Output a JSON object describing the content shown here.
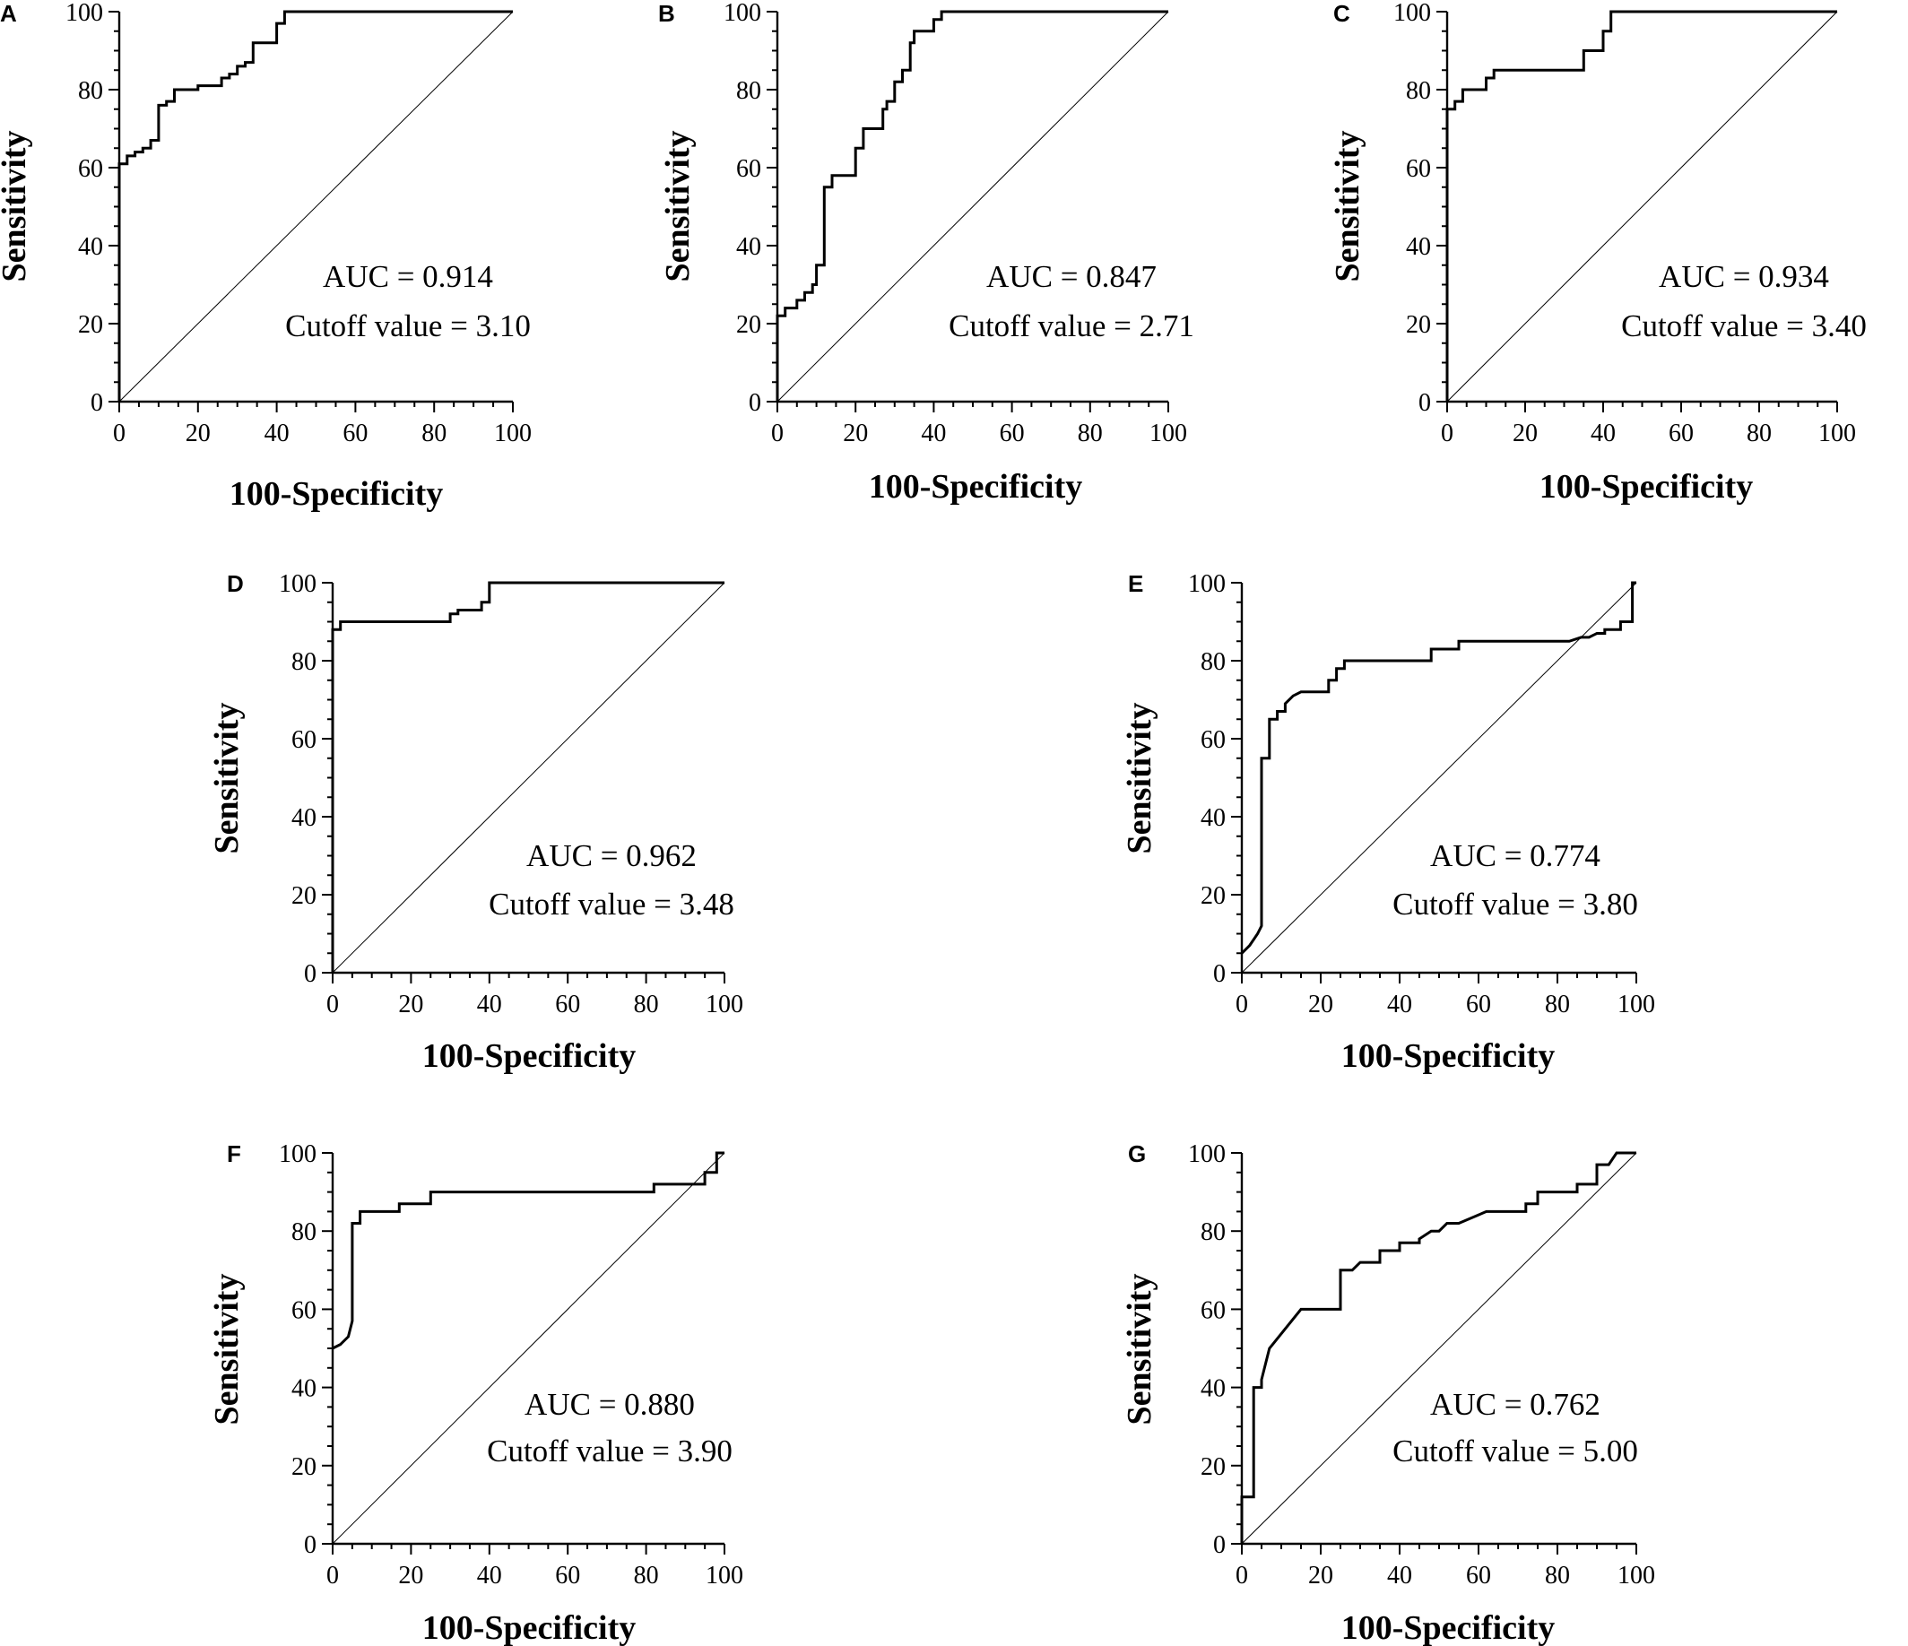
{
  "chart_data": [
    {
      "panel": "A",
      "type": "line",
      "xlabel": "100-Specificity",
      "ylabel": "Sensitivity",
      "xlim": [
        0,
        100
      ],
      "ylim": [
        0,
        100
      ],
      "xticks": [
        "0",
        "20",
        "40",
        "60",
        "80",
        "100"
      ],
      "yticks": [
        "0",
        "20",
        "40",
        "60",
        "80",
        "100"
      ],
      "annotations": [
        "AUC = 0.914",
        "Cutoff value = 3.10"
      ],
      "series": [
        {
          "role": "roc",
          "x": [
            0,
            0,
            2,
            2,
            4,
            4,
            6,
            6,
            8,
            8,
            10,
            10,
            12,
            12,
            14,
            14,
            20,
            20,
            26,
            26,
            28,
            28,
            30,
            30,
            32,
            32,
            34,
            34,
            40,
            40,
            42,
            42,
            100
          ],
          "y": [
            0,
            61,
            61,
            63,
            63,
            64,
            64,
            65,
            65,
            67,
            67,
            76,
            76,
            77,
            77,
            80,
            80,
            81,
            81,
            83,
            83,
            84,
            84,
            86,
            86,
            87,
            87,
            92,
            92,
            97,
            97,
            100,
            100
          ]
        },
        {
          "role": "reference",
          "x": [
            0,
            100
          ],
          "y": [
            0,
            100
          ]
        }
      ]
    },
    {
      "panel": "B",
      "type": "line",
      "xlabel": "100-Specificity",
      "ylabel": "Sensitivity",
      "xlim": [
        0,
        100
      ],
      "ylim": [
        0,
        100
      ],
      "xticks": [
        "0",
        "20",
        "40",
        "60",
        "80",
        "100"
      ],
      "yticks": [
        "0",
        "20",
        "40",
        "60",
        "80",
        "100"
      ],
      "annotations": [
        "AUC = 0.847",
        "Cutoff value = 2.71"
      ],
      "series": [
        {
          "role": "roc",
          "x": [
            0,
            0,
            2,
            2,
            5,
            5,
            7,
            7,
            9,
            9,
            10,
            10,
            12,
            12,
            14,
            14,
            20,
            20,
            22,
            22,
            27,
            27,
            28,
            28,
            30,
            30,
            32,
            32,
            34,
            34,
            35,
            35,
            40,
            40,
            42,
            42,
            100
          ],
          "y": [
            0,
            22,
            22,
            24,
            24,
            26,
            26,
            28,
            28,
            30,
            30,
            35,
            35,
            55,
            55,
            58,
            58,
            65,
            65,
            70,
            70,
            75,
            75,
            77,
            77,
            82,
            82,
            85,
            85,
            92,
            92,
            95,
            95,
            98,
            98,
            100,
            100
          ]
        },
        {
          "role": "reference",
          "x": [
            0,
            100
          ],
          "y": [
            0,
            100
          ]
        }
      ]
    },
    {
      "panel": "C",
      "type": "line",
      "xlabel": "100-Specificity",
      "ylabel": "Sensitivity",
      "xlim": [
        0,
        100
      ],
      "ylim": [
        0,
        100
      ],
      "xticks": [
        "0",
        "20",
        "40",
        "60",
        "80",
        "100"
      ],
      "yticks": [
        "0",
        "20",
        "40",
        "60",
        "80",
        "100"
      ],
      "annotations": [
        "AUC = 0.934",
        "Cutoff value = 3.40"
      ],
      "series": [
        {
          "role": "roc",
          "x": [
            0,
            0,
            2,
            2,
            4,
            4,
            6,
            6,
            10,
            10,
            12,
            12,
            35,
            35,
            40,
            40,
            42,
            42,
            100
          ],
          "y": [
            0,
            75,
            75,
            77,
            77,
            80,
            80,
            80,
            80,
            83,
            83,
            85,
            85,
            90,
            90,
            95,
            95,
            100,
            100
          ]
        },
        {
          "role": "reference",
          "x": [
            0,
            100
          ],
          "y": [
            0,
            100
          ]
        }
      ]
    },
    {
      "panel": "D",
      "type": "line",
      "xlabel": "100-Specificity",
      "ylabel": "Sensitivity",
      "xlim": [
        0,
        100
      ],
      "ylim": [
        0,
        100
      ],
      "xticks": [
        "0",
        "20",
        "40",
        "60",
        "80",
        "100"
      ],
      "yticks": [
        "0",
        "20",
        "40",
        "60",
        "80",
        "100"
      ],
      "annotations": [
        "AUC = 0.962",
        "Cutoff value = 3.48"
      ],
      "series": [
        {
          "role": "roc",
          "x": [
            0,
            0,
            2,
            2,
            30,
            30,
            32,
            32,
            38,
            38,
            40,
            40,
            100
          ],
          "y": [
            0,
            88,
            88,
            90,
            90,
            92,
            92,
            93,
            93,
            95,
            95,
            100,
            100
          ]
        },
        {
          "role": "reference",
          "x": [
            0,
            100
          ],
          "y": [
            0,
            100
          ]
        }
      ]
    },
    {
      "panel": "E",
      "type": "line",
      "xlabel": "100-Specificity",
      "ylabel": "Sensitivity",
      "xlim": [
        0,
        100
      ],
      "ylim": [
        0,
        100
      ],
      "xticks": [
        "0",
        "20",
        "40",
        "60",
        "80",
        "100"
      ],
      "yticks": [
        "0",
        "20",
        "40",
        "60",
        "80",
        "100"
      ],
      "annotations": [
        "AUC = 0.774",
        "Cutoff value = 3.80"
      ],
      "series": [
        {
          "role": "roc",
          "x": [
            0,
            2,
            4,
            5,
            5,
            7,
            7,
            9,
            9,
            11,
            11,
            13,
            15,
            15,
            18,
            22,
            22,
            24,
            24,
            26,
            26,
            30,
            40,
            48,
            48,
            55,
            55,
            65,
            83,
            86,
            88,
            90,
            92,
            92,
            96,
            96,
            99,
            99,
            100
          ],
          "y": [
            5,
            7,
            10,
            12,
            55,
            55,
            65,
            65,
            67,
            67,
            69,
            71,
            72,
            72,
            72,
            72,
            75,
            75,
            78,
            78,
            80,
            80,
            80,
            80,
            83,
            83,
            85,
            85,
            85,
            86,
            86,
            87,
            87,
            88,
            88,
            90,
            90,
            100,
            100
          ]
        },
        {
          "role": "reference",
          "x": [
            0,
            100
          ],
          "y": [
            0,
            100
          ]
        }
      ]
    },
    {
      "panel": "F",
      "type": "line",
      "xlabel": "100-Specificity",
      "ylabel": "Sensitivity",
      "xlim": [
        0,
        100
      ],
      "ylim": [
        0,
        100
      ],
      "xticks": [
        "0",
        "20",
        "40",
        "60",
        "80",
        "100"
      ],
      "yticks": [
        "0",
        "20",
        "40",
        "60",
        "80",
        "100"
      ],
      "annotations": [
        "AUC = 0.880",
        "Cutoff value = 3.90"
      ],
      "series": [
        {
          "role": "roc",
          "x": [
            0,
            2,
            4,
            5,
            5,
            7,
            7,
            17,
            17,
            25,
            25,
            82,
            82,
            95,
            95,
            98,
            98,
            100
          ],
          "y": [
            50,
            51,
            53,
            57,
            82,
            82,
            85,
            85,
            87,
            87,
            90,
            90,
            92,
            92,
            95,
            95,
            100,
            100
          ]
        },
        {
          "role": "reference",
          "x": [
            0,
            100
          ],
          "y": [
            0,
            100
          ]
        }
      ]
    },
    {
      "panel": "G",
      "type": "line",
      "xlabel": "100-Specificity",
      "ylabel": "Sensitivity",
      "xlim": [
        0,
        100
      ],
      "ylim": [
        0,
        100
      ],
      "xticks": [
        "0",
        "20",
        "40",
        "60",
        "80",
        "100"
      ],
      "yticks": [
        "0",
        "20",
        "40",
        "60",
        "80",
        "100"
      ],
      "annotations": [
        "AUC = 0.762",
        "Cutoff value = 5.00"
      ],
      "series": [
        {
          "role": "roc",
          "x": [
            0,
            0,
            3,
            3,
            5,
            5,
            7,
            15,
            25,
            25,
            28,
            30,
            35,
            35,
            40,
            40,
            45,
            45,
            48,
            50,
            52,
            55,
            62,
            72,
            72,
            75,
            75,
            80,
            85,
            85,
            90,
            90,
            93,
            95,
            100
          ],
          "y": [
            0,
            12,
            12,
            40,
            40,
            42,
            50,
            60,
            60,
            70,
            70,
            72,
            72,
            75,
            75,
            77,
            77,
            78,
            80,
            80,
            82,
            82,
            85,
            85,
            87,
            87,
            90,
            90,
            90,
            92,
            92,
            97,
            97,
            100,
            100
          ]
        },
        {
          "role": "reference",
          "x": [
            0,
            100
          ],
          "y": [
            0,
            100
          ]
        }
      ]
    }
  ]
}
